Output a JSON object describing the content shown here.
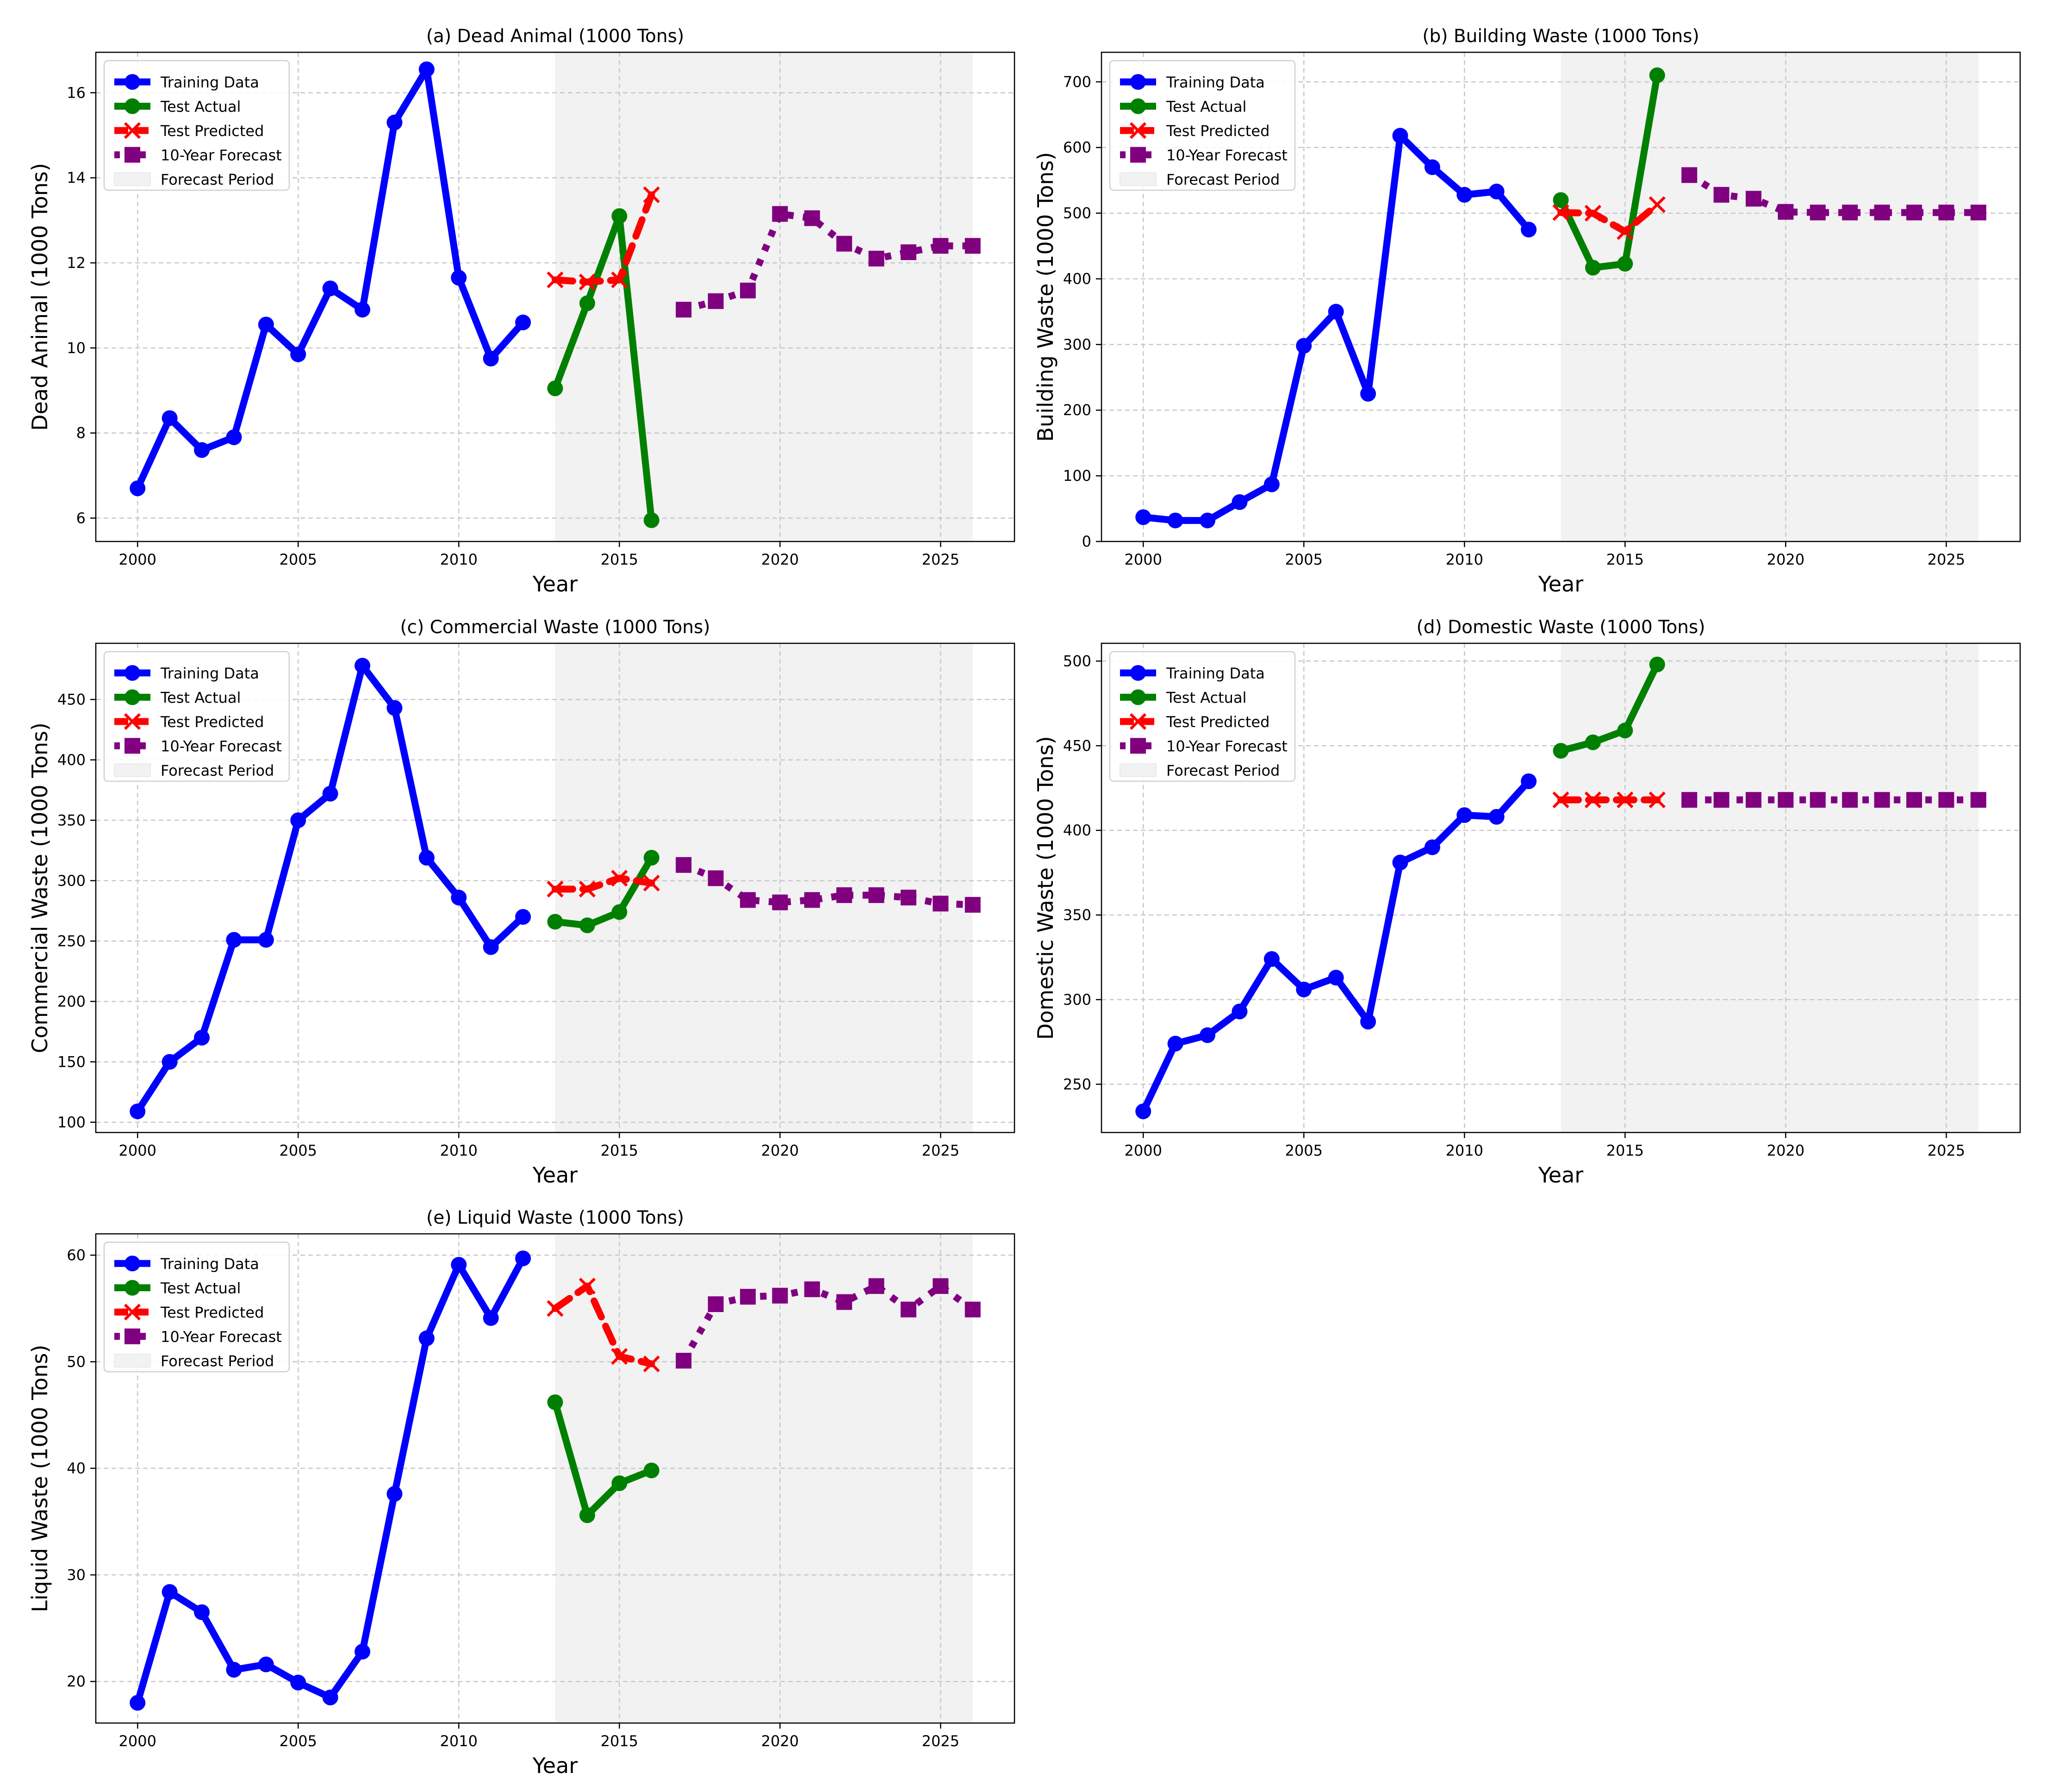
{
  "figure": {
    "legend_labels": [
      "Training Data",
      "Test Actual",
      "Test Predicted",
      "10-Year Forecast",
      "Forecast Period"
    ],
    "colors": {
      "training": "#0000ff",
      "test_actual": "#008000",
      "test_predicted": "#ff0000",
      "forecast": "#800080",
      "forecast_period": "#f2f2f2",
      "grid": "#c8c8c8"
    }
  },
  "chart_data": [
    {
      "id": "a",
      "type": "line",
      "title": "(a) Dead Animal (1000 Tons)",
      "xlabel": "Year",
      "ylabel": "Dead Animal (1000 Tons)",
      "xlim": [
        1998.7,
        2027.3
      ],
      "ylim": [
        5.45,
        16.95
      ],
      "xticks": [
        2000,
        2005,
        2010,
        2015,
        2020,
        2025
      ],
      "yticks": [
        6,
        8,
        10,
        12,
        14,
        16
      ],
      "forecast_period": [
        2013,
        2026
      ],
      "legend_position": "upper-left",
      "series": [
        {
          "name": "Training Data",
          "x": [
            2000,
            2001,
            2002,
            2003,
            2004,
            2005,
            2006,
            2007,
            2008,
            2009,
            2010,
            2011,
            2012
          ],
          "values": [
            6.7,
            8.35,
            7.6,
            7.9,
            10.55,
            9.85,
            11.4,
            10.9,
            15.3,
            16.55,
            11.65,
            9.75,
            10.6
          ]
        },
        {
          "name": "Test Actual",
          "x": [
            2013,
            2014,
            2015,
            2016
          ],
          "values": [
            9.05,
            11.05,
            13.1,
            5.95
          ]
        },
        {
          "name": "Test Predicted",
          "x": [
            2013,
            2014,
            2015,
            2016
          ],
          "values": [
            11.6,
            11.55,
            11.6,
            13.6
          ]
        },
        {
          "name": "10-Year Forecast",
          "x": [
            2017,
            2018,
            2019,
            2020,
            2021,
            2022,
            2023,
            2024,
            2025,
            2026
          ],
          "values": [
            10.9,
            11.1,
            11.35,
            13.15,
            13.05,
            12.45,
            12.1,
            12.25,
            12.4,
            12.4
          ]
        }
      ]
    },
    {
      "id": "b",
      "type": "line",
      "title": "(b) Building Waste (1000 Tons)",
      "xlabel": "Year",
      "ylabel": "Building Waste (1000 Tons)",
      "xlim": [
        1998.7,
        2027.3
      ],
      "ylim": [
        0,
        745
      ],
      "xticks": [
        2000,
        2005,
        2010,
        2015,
        2020,
        2025
      ],
      "yticks": [
        0,
        100,
        200,
        300,
        400,
        500,
        600,
        700
      ],
      "forecast_period": [
        2013,
        2026
      ],
      "legend_position": "upper-left",
      "series": [
        {
          "name": "Training Data",
          "x": [
            2000,
            2001,
            2002,
            2003,
            2004,
            2005,
            2006,
            2007,
            2008,
            2009,
            2010,
            2011,
            2012
          ],
          "values": [
            37,
            32,
            32,
            60,
            87,
            298,
            350,
            225,
            618,
            570,
            528,
            533,
            475
          ]
        },
        {
          "name": "Test Actual",
          "x": [
            2013,
            2014,
            2015,
            2016
          ],
          "values": [
            520,
            417,
            423,
            710
          ]
        },
        {
          "name": "Test Predicted",
          "x": [
            2013,
            2014,
            2015,
            2016
          ],
          "values": [
            501,
            500,
            472,
            513
          ]
        },
        {
          "name": "10-Year Forecast",
          "x": [
            2017,
            2018,
            2019,
            2020,
            2021,
            2022,
            2023,
            2024,
            2025,
            2026
          ],
          "values": [
            558,
            528,
            522,
            502,
            501,
            501,
            501,
            501,
            501,
            501
          ]
        }
      ]
    },
    {
      "id": "c",
      "type": "line",
      "title": "(c) Commercial Waste (1000 Tons)",
      "xlabel": "Year",
      "ylabel": "Commercial Waste (1000 Tons)",
      "xlim": [
        1998.7,
        2027.3
      ],
      "ylim": [
        91.5,
        496.5
      ],
      "xticks": [
        2000,
        2005,
        2010,
        2015,
        2020,
        2025
      ],
      "yticks": [
        100,
        150,
        200,
        250,
        300,
        350,
        400,
        450
      ],
      "forecast_period": [
        2013,
        2026
      ],
      "legend_position": "upper-left",
      "series": [
        {
          "name": "Training Data",
          "x": [
            2000,
            2001,
            2002,
            2003,
            2004,
            2005,
            2006,
            2007,
            2008,
            2009,
            2010,
            2011,
            2012
          ],
          "values": [
            109,
            150,
            170,
            251,
            251,
            350,
            372,
            478,
            443,
            319,
            286,
            245,
            270
          ]
        },
        {
          "name": "Test Actual",
          "x": [
            2013,
            2014,
            2015,
            2016
          ],
          "values": [
            266,
            263,
            274,
            319
          ]
        },
        {
          "name": "Test Predicted",
          "x": [
            2013,
            2014,
            2015,
            2016
          ],
          "values": [
            293,
            293,
            302,
            298
          ]
        },
        {
          "name": "10-Year Forecast",
          "x": [
            2017,
            2018,
            2019,
            2020,
            2021,
            2022,
            2023,
            2024,
            2025,
            2026
          ],
          "values": [
            313,
            302,
            284,
            282,
            284,
            288,
            288,
            286,
            281,
            280
          ]
        }
      ]
    },
    {
      "id": "d",
      "type": "line",
      "title": "(d) Domestic Waste (1000 Tons)",
      "xlabel": "Year",
      "ylabel": "Domestic Waste (1000 Tons)",
      "xlim": [
        1998.7,
        2027.3
      ],
      "ylim": [
        221.5,
        510.5
      ],
      "xticks": [
        2000,
        2005,
        2010,
        2015,
        2020,
        2025
      ],
      "yticks": [
        250,
        300,
        350,
        400,
        450,
        500
      ],
      "forecast_period": [
        2013,
        2026
      ],
      "legend_position": "upper-left",
      "series": [
        {
          "name": "Training Data",
          "x": [
            2000,
            2001,
            2002,
            2003,
            2004,
            2005,
            2006,
            2007,
            2008,
            2009,
            2010,
            2011,
            2012
          ],
          "values": [
            234,
            274,
            279,
            293,
            324,
            306,
            313,
            287,
            381,
            390,
            409,
            408,
            429
          ]
        },
        {
          "name": "Test Actual",
          "x": [
            2013,
            2014,
            2015,
            2016
          ],
          "values": [
            447,
            452,
            459,
            498
          ]
        },
        {
          "name": "Test Predicted",
          "x": [
            2013,
            2014,
            2015,
            2016
          ],
          "values": [
            418,
            418,
            418,
            418
          ]
        },
        {
          "name": "10-Year Forecast",
          "x": [
            2017,
            2018,
            2019,
            2020,
            2021,
            2022,
            2023,
            2024,
            2025,
            2026
          ],
          "values": [
            418,
            418,
            418,
            418,
            418,
            418,
            418,
            418,
            418,
            418
          ]
        }
      ]
    },
    {
      "id": "e",
      "type": "line",
      "title": "(e) Liquid Waste (1000 Tons)",
      "xlabel": "Year",
      "ylabel": "Liquid Waste (1000 Tons)",
      "xlim": [
        1998.7,
        2027.3
      ],
      "ylim": [
        16.1,
        62.0
      ],
      "xticks": [
        2000,
        2005,
        2010,
        2015,
        2020,
        2025
      ],
      "yticks": [
        20,
        30,
        40,
        50,
        60
      ],
      "forecast_period": [
        2013,
        2026
      ],
      "legend_position": "upper-left",
      "series": [
        {
          "name": "Training Data",
          "x": [
            2000,
            2001,
            2002,
            2003,
            2004,
            2005,
            2006,
            2007,
            2008,
            2009,
            2010,
            2011,
            2012
          ],
          "values": [
            18,
            28.4,
            26.5,
            21.1,
            21.6,
            19.9,
            18.5,
            22.8,
            37.6,
            52.2,
            59.1,
            54.1,
            59.7
          ]
        },
        {
          "name": "Test Actual",
          "x": [
            2013,
            2014,
            2015,
            2016
          ],
          "values": [
            46.2,
            35.6,
            38.6,
            39.8
          ]
        },
        {
          "name": "Test Predicted",
          "x": [
            2013,
            2014,
            2015,
            2016
          ],
          "values": [
            55,
            57.1,
            50.5,
            49.8
          ]
        },
        {
          "name": "10-Year Forecast",
          "x": [
            2017,
            2018,
            2019,
            2020,
            2021,
            2022,
            2023,
            2024,
            2025,
            2026
          ],
          "values": [
            50.1,
            55.4,
            56.1,
            56.2,
            56.8,
            55.6,
            57.1,
            54.9,
            57.1,
            54.9
          ]
        }
      ]
    }
  ]
}
